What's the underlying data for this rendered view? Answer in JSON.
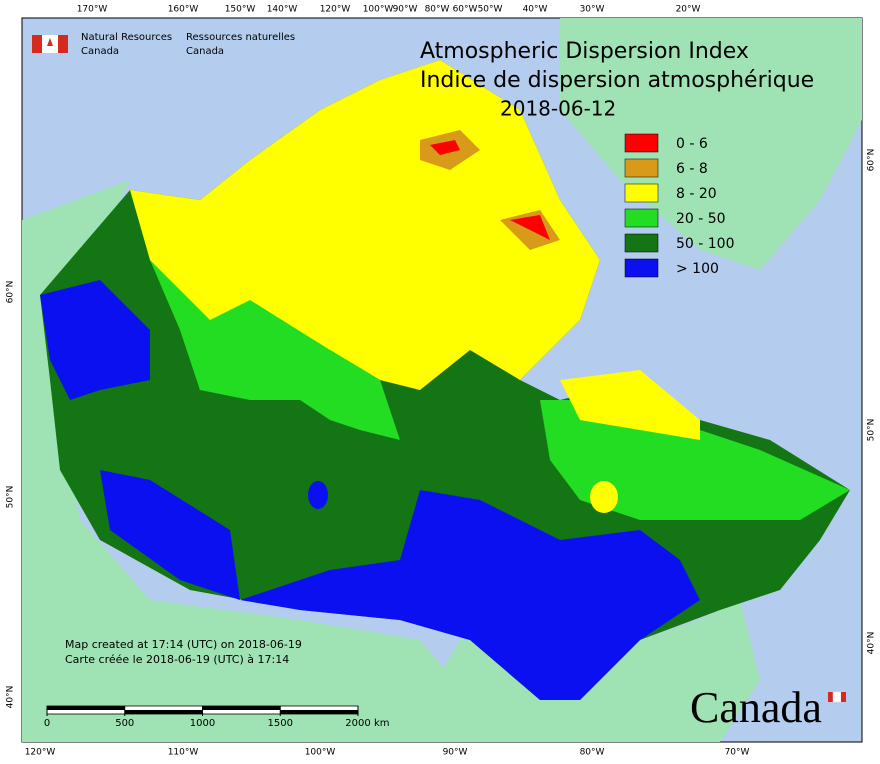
{
  "org": {
    "en": [
      "Natural Resources",
      "Canada"
    ],
    "fr": [
      "Ressources naturelles",
      "Canada"
    ]
  },
  "title": {
    "en": "Atmospheric Dispersion Index",
    "fr": "Indice de dispersion atmosphérique",
    "date": "2018-06-12"
  },
  "legend": [
    {
      "label": "0 - 6",
      "color": "#ff0000"
    },
    {
      "label": "6 - 8",
      "color": "#d99a1a"
    },
    {
      "label": "8 - 20",
      "color": "#ffff00"
    },
    {
      "label": "20 - 50",
      "color": "#22dd22"
    },
    {
      "label": "50 - 100",
      "color": "#137513"
    },
    {
      "label": "> 100",
      "color": "#0a10f0"
    }
  ],
  "graticule": {
    "top": [
      "170°W",
      "160°W",
      "150°W",
      "140°W",
      "120°W",
      "100°W",
      "90°W",
      "80°W",
      "60°W",
      "50°W",
      "40°W",
      "30°W",
      "20°W"
    ],
    "bottom": [
      "120°W",
      "110°W",
      "100°W",
      "90°W",
      "80°W",
      "70°W"
    ],
    "left": [
      "60°N",
      "50°N",
      "40°N"
    ],
    "right": [
      "60°N",
      "50°N",
      "40°N"
    ]
  },
  "footer": {
    "en": "Map created at 17:14 (UTC) on 2018-06-19",
    "fr": "Carte créée le 2018-06-19 (UTC) à 17:14"
  },
  "scale": {
    "ticks": [
      0,
      500,
      1000,
      1500,
      2000
    ],
    "unit": "km"
  },
  "wordmark": "Canada"
}
